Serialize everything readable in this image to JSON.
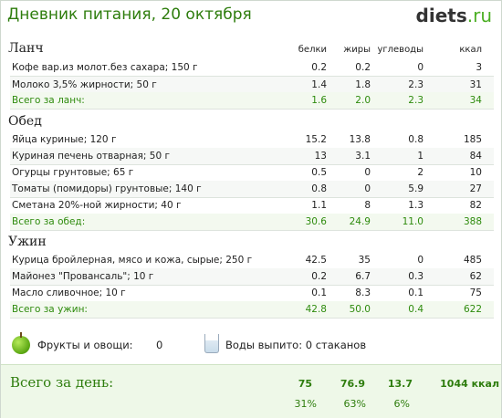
{
  "header": {
    "title": "Дневник питания, 20 октября",
    "logo_main": "diets",
    "logo_suffix": ".ru"
  },
  "columns": {
    "protein": "белки",
    "fat": "жиры",
    "carbs": "углеводы",
    "kcal": "ккал"
  },
  "meals": [
    {
      "title": "Ланч",
      "items": [
        {
          "name": "Кофе вар.из молот.без сахара; 150 г",
          "protein": "0.2",
          "fat": "0.2",
          "carbs": "0",
          "kcal": "3"
        },
        {
          "name": "Молоко 3,5% жирности; 50 г",
          "protein": "1.4",
          "fat": "1.8",
          "carbs": "2.3",
          "kcal": "31"
        }
      ],
      "total": {
        "label": "Всего за ланч:",
        "protein": "1.6",
        "fat": "2.0",
        "carbs": "2.3",
        "kcal": "34"
      }
    },
    {
      "title": "Обед",
      "items": [
        {
          "name": "Яйца куриные; 120 г",
          "protein": "15.2",
          "fat": "13.8",
          "carbs": "0.8",
          "kcal": "185"
        },
        {
          "name": "Куриная печень отварная; 50 г",
          "protein": "13",
          "fat": "3.1",
          "carbs": "1",
          "kcal": "84"
        },
        {
          "name": "Огурцы грунтовые; 65 г",
          "protein": "0.5",
          "fat": "0",
          "carbs": "2",
          "kcal": "10"
        },
        {
          "name": "Томаты (помидоры) грунтовые; 140 г",
          "protein": "0.8",
          "fat": "0",
          "carbs": "5.9",
          "kcal": "27"
        },
        {
          "name": "Сметана 20%-ной жирности; 40 г",
          "protein": "1.1",
          "fat": "8",
          "carbs": "1.3",
          "kcal": "82"
        }
      ],
      "total": {
        "label": "Всего за обед:",
        "protein": "30.6",
        "fat": "24.9",
        "carbs": "11.0",
        "kcal": "388"
      }
    },
    {
      "title": "Ужин",
      "items": [
        {
          "name": "Курица бройлерная, мясо и кожа, сырые; 250 г",
          "protein": "42.5",
          "fat": "35",
          "carbs": "0",
          "kcal": "485"
        },
        {
          "name": "Майонез \"Провансаль\"; 10 г",
          "protein": "0.2",
          "fat": "6.7",
          "carbs": "0.3",
          "kcal": "62"
        },
        {
          "name": "Масло сливочное; 10 г",
          "protein": "0.1",
          "fat": "8.3",
          "carbs": "0.1",
          "kcal": "75"
        }
      ],
      "total": {
        "label": "Всего за ужин:",
        "protein": "42.8",
        "fat": "50.0",
        "carbs": "0.4",
        "kcal": "622"
      }
    }
  ],
  "extras": {
    "fruit_label": "Фрукты и овощи:",
    "fruit_value": "0",
    "water_label": "Воды выпито: 0 стаканов",
    "fruit_icon": "apple-icon",
    "water_icon": "glass-icon"
  },
  "day_total": {
    "label": "Всего за день:",
    "protein": "75",
    "fat": "76.9",
    "carbs": "13.7",
    "kcal": "1044 ккал",
    "protein_pct": "31%",
    "fat_pct": "63%",
    "carbs_pct": "6%"
  }
}
